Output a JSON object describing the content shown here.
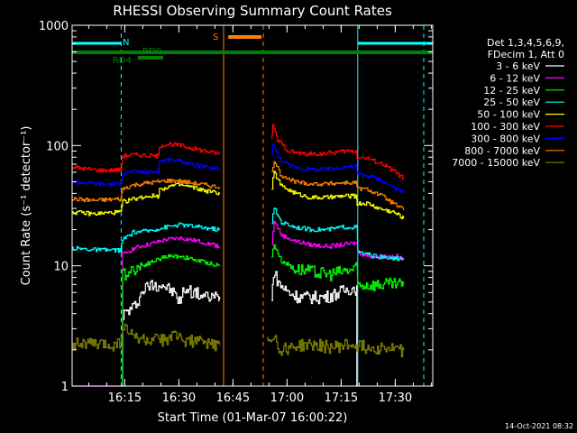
{
  "chart_data": {
    "type": "line",
    "title": "RHESSI Observing Summary Count Rates",
    "xlabel": "Start Time (01-Mar-07 16:00:22)",
    "ylabel": "Count Rate (s⁻¹ detector⁻¹)",
    "yscale": "log",
    "ylim": [
      1,
      1000
    ],
    "xlim_minutes": [
      0,
      100
    ],
    "x_unit": "minutes after 16:00:22",
    "x_ticks": [
      {
        "v": 14.6,
        "label": "16:15"
      },
      {
        "v": 29.6,
        "label": "16:30"
      },
      {
        "v": 44.6,
        "label": "16:45"
      },
      {
        "v": 59.6,
        "label": "17:00"
      },
      {
        "v": 74.6,
        "label": "17:15"
      },
      {
        "v": 89.6,
        "label": "17:30"
      }
    ],
    "y_ticks": [
      {
        "v": 1,
        "label": "1"
      },
      {
        "v": 10,
        "label": "10"
      },
      {
        "v": 100,
        "label": "100"
      },
      {
        "v": 1000,
        "label": "1000"
      }
    ],
    "legend_header": [
      "Det 1,3,4,5,6,9,",
      "FDecim 1, Att 0"
    ],
    "series": [
      {
        "name": "3 - 6 keV",
        "color": "#ffffff",
        "segments": [
          [
            [
              13.6,
              0
            ],
            [
              14.4,
              4
            ],
            [
              17.0,
              4.5
            ],
            [
              20.0,
              6.5
            ],
            [
              22.0,
              7
            ],
            [
              25.0,
              7
            ],
            [
              28.0,
              6
            ],
            [
              30.0,
              5
            ],
            [
              31.0,
              6.5
            ],
            [
              34.0,
              6
            ],
            [
              37.0,
              5.5
            ],
            [
              41.0,
              5.5
            ]
          ],
          [
            [
              55.3,
              5
            ],
            [
              55.8,
              9
            ],
            [
              57.5,
              7
            ],
            [
              60.0,
              6
            ],
            [
              63.0,
              5.5
            ],
            [
              66.0,
              5.5
            ],
            [
              70.0,
              5.5
            ],
            [
              74.0,
              6
            ],
            [
              77.0,
              6.5
            ],
            [
              78.9,
              6.5
            ],
            [
              79.0,
              0
            ]
          ]
        ]
      },
      {
        "name": "6 - 12 keV",
        "color": "#ff00ff",
        "segments": [
          [
            [
              0,
              0
            ],
            [
              13.6,
              0
            ],
            [
              14.4,
              12.5
            ],
            [
              17.0,
              14
            ],
            [
              21.0,
              15
            ],
            [
              26.0,
              16.5
            ],
            [
              30.0,
              17
            ],
            [
              35.0,
              16
            ],
            [
              41.0,
              14.5
            ]
          ],
          [
            [
              55.3,
              15
            ],
            [
              56.0,
              24
            ],
            [
              58.0,
              18
            ],
            [
              62.0,
              16
            ],
            [
              66.0,
              15
            ],
            [
              71.0,
              14.5
            ],
            [
              75.0,
              15
            ],
            [
              79.0,
              15.5
            ],
            [
              79.2,
              13
            ],
            [
              82.0,
              12
            ],
            [
              86.0,
              12
            ],
            [
              90.0,
              12
            ],
            [
              92.0,
              11.5
            ]
          ]
        ]
      },
      {
        "name": "12 - 25 keV",
        "color": "#00ff00",
        "segments": [
          [
            [
              13.6,
              0
            ],
            [
              14.4,
              8.5
            ],
            [
              17.0,
              9.5
            ],
            [
              21.0,
              10.5
            ],
            [
              26.0,
              12
            ],
            [
              30.0,
              12
            ],
            [
              35.0,
              11
            ],
            [
              41.0,
              10
            ]
          ],
          [
            [
              55.3,
              12
            ],
            [
              56.0,
              15
            ],
            [
              58.0,
              11
            ],
            [
              62.0,
              9.5
            ],
            [
              66.0,
              9
            ],
            [
              71.0,
              8.5
            ],
            [
              75.0,
              9
            ],
            [
              79.0,
              9.5
            ],
            [
              79.2,
              7
            ],
            [
              82.0,
              7
            ],
            [
              86.0,
              7
            ],
            [
              92.0,
              7
            ]
          ]
        ]
      },
      {
        "name": "25 - 50 keV",
        "color": "#00ffff",
        "segments": [
          [
            [
              0,
              14
            ],
            [
              8.0,
              13.5
            ],
            [
              13.5,
              13.5
            ],
            [
              14.0,
              16.5
            ],
            [
              17.0,
              19
            ],
            [
              21.0,
              19.5
            ],
            [
              26.0,
              21
            ],
            [
              30.0,
              22
            ],
            [
              35.0,
              21
            ],
            [
              41.0,
              20
            ]
          ],
          [
            [
              55.3,
              23
            ],
            [
              56.0,
              30
            ],
            [
              58.0,
              23
            ],
            [
              62.0,
              21
            ],
            [
              66.0,
              20
            ],
            [
              71.0,
              20
            ],
            [
              75.0,
              21
            ],
            [
              79.0,
              21
            ],
            [
              79.2,
              13
            ],
            [
              84.0,
              12
            ],
            [
              88.0,
              11.5
            ],
            [
              92.0,
              11.5
            ]
          ]
        ]
      },
      {
        "name": "50 - 100 keV",
        "color": "#ffff00",
        "segments": [
          [
            [
              0,
              28
            ],
            [
              6.0,
              27
            ],
            [
              13.5,
              28
            ],
            [
              14.0,
              34
            ],
            [
              17.0,
              36
            ],
            [
              21.0,
              38
            ],
            [
              24.0,
              38
            ],
            [
              24.2,
              43
            ],
            [
              27.0,
              46
            ],
            [
              30.0,
              47
            ],
            [
              33.0,
              45
            ],
            [
              37.0,
              42
            ],
            [
              41.0,
              40
            ]
          ],
          [
            [
              55.3,
              45
            ],
            [
              56.0,
              60
            ],
            [
              58.0,
              46
            ],
            [
              62.0,
              40
            ],
            [
              66.0,
              37
            ],
            [
              71.0,
              37
            ],
            [
              75.0,
              38
            ],
            [
              78.9,
              38
            ],
            [
              79.0,
              33
            ],
            [
              82.0,
              33
            ],
            [
              85.0,
              30
            ],
            [
              89.0,
              28
            ],
            [
              92.0,
              25
            ]
          ]
        ]
      },
      {
        "name": "100 - 300 keV",
        "color": "#ff0000",
        "segments": [
          [
            [
              0,
              66
            ],
            [
              8.0,
              62
            ],
            [
              13.5,
              63
            ],
            [
              14.0,
              82
            ],
            [
              17.0,
              84
            ],
            [
              21.0,
              82
            ],
            [
              24.0,
              82
            ],
            [
              24.2,
              100
            ],
            [
              27.0,
              103
            ],
            [
              30.0,
              100
            ],
            [
              33.0,
              95
            ],
            [
              37.0,
              90
            ],
            [
              41.0,
              85
            ]
          ],
          [
            [
              55.3,
              110
            ],
            [
              55.6,
              145
            ],
            [
              57.0,
              110
            ],
            [
              60.0,
              90
            ],
            [
              64.0,
              85
            ],
            [
              68.0,
              85
            ],
            [
              72.0,
              87
            ],
            [
              76.0,
              90
            ],
            [
              78.9,
              90
            ],
            [
              79.0,
              80
            ],
            [
              82.0,
              78
            ],
            [
              86.0,
              70
            ],
            [
              89.0,
              62
            ],
            [
              92.0,
              53
            ]
          ]
        ]
      },
      {
        "name": "300 - 800 keV",
        "color": "#0000ff",
        "segments": [
          [
            [
              0,
              50
            ],
            [
              8.0,
              48
            ],
            [
              13.5,
              48
            ],
            [
              14.0,
              59
            ],
            [
              17.0,
              61
            ],
            [
              21.0,
              60
            ],
            [
              24.0,
              61
            ],
            [
              24.2,
              75
            ],
            [
              27.0,
              76
            ],
            [
              30.0,
              74
            ],
            [
              33.0,
              70
            ],
            [
              37.0,
              66
            ],
            [
              41.0,
              63
            ]
          ],
          [
            [
              55.3,
              80
            ],
            [
              55.6,
              105
            ],
            [
              57.0,
              80
            ],
            [
              60.0,
              68
            ],
            [
              64.0,
              64
            ],
            [
              68.0,
              63
            ],
            [
              72.0,
              64
            ],
            [
              76.0,
              67
            ],
            [
              78.9,
              67
            ],
            [
              79.0,
              58
            ],
            [
              82.0,
              56
            ],
            [
              86.0,
              51
            ],
            [
              89.0,
              45
            ],
            [
              92.0,
              40
            ]
          ]
        ]
      },
      {
        "name": "800 - 7000 keV",
        "color": "#ff8000",
        "segments": [
          [
            [
              0,
              36
            ],
            [
              6.0,
              35
            ],
            [
              13.5,
              36
            ],
            [
              14.0,
              44
            ],
            [
              17.0,
              47
            ],
            [
              21.0,
              49
            ],
            [
              24.0,
              50
            ],
            [
              26.0,
              51
            ],
            [
              29.0,
              51
            ],
            [
              33.0,
              49
            ],
            [
              37.0,
              47
            ],
            [
              41.0,
              45
            ]
          ],
          [
            [
              55.3,
              60
            ],
            [
              56.0,
              75
            ],
            [
              58.0,
              55
            ],
            [
              62.0,
              50
            ],
            [
              66.0,
              48
            ],
            [
              70.0,
              48
            ],
            [
              75.0,
              49
            ],
            [
              78.9,
              49
            ],
            [
              79.0,
              44
            ],
            [
              82.0,
              43
            ],
            [
              86.0,
              38
            ],
            [
              89.0,
              33
            ],
            [
              92.0,
              29
            ]
          ]
        ]
      },
      {
        "name": "7000 - 15000 keV",
        "color": "#808000",
        "segments": [
          [
            [
              0,
              2.3
            ],
            [
              8.0,
              2.2
            ],
            [
              11.0,
              2.2
            ],
            [
              13.5,
              2.3
            ],
            [
              14.0,
              3.2
            ],
            [
              16.0,
              2.7
            ],
            [
              20.0,
              2.4
            ],
            [
              24.0,
              2.4
            ],
            [
              28.0,
              2.6
            ],
            [
              32.0,
              2.4
            ],
            [
              36.0,
              2.3
            ],
            [
              41.0,
              2.2
            ]
          ],
          [
            [
              54.0,
              2.5
            ],
            [
              55.0,
              2.5
            ],
            [
              56.0,
              2.8
            ],
            [
              57.0,
              2.0
            ],
            [
              60.0,
              2.1
            ],
            [
              64.0,
              2.2
            ],
            [
              68.0,
              2.2
            ],
            [
              72.0,
              2.1
            ],
            [
              76.0,
              2.2
            ],
            [
              79.0,
              2.2
            ],
            [
              82.0,
              2.1
            ],
            [
              86.0,
              2.1
            ],
            [
              90.0,
              2.0
            ],
            [
              92.0,
              2.0
            ]
          ]
        ]
      }
    ],
    "state_bars": [
      {
        "label": "N",
        "color": "#00ffff",
        "ranges": [
          [
            0,
            13.6
          ],
          [
            79.2,
            100
          ]
        ],
        "label_at": 14.0
      },
      {
        "label": "RD0",
        "color": "#008000",
        "ranges": [
          [
            0,
            100
          ]
        ],
        "label_at": 19.5
      },
      {
        "label": "RD4",
        "color": "#008000",
        "ranges": [
          [
            18.2,
            25.2
          ]
        ],
        "label_at": 11.2
      },
      {
        "label": "S",
        "color": "#ff8000",
        "ranges": [
          [
            43.3,
            52.5
          ]
        ],
        "label_at": 39.0
      }
    ],
    "vertical_markers": [
      {
        "x": 0,
        "color": "#00ffff",
        "style": "solid"
      },
      {
        "x": 13.6,
        "color": "#00ffff",
        "style": "dashed"
      },
      {
        "x": 42.0,
        "color": "#ff8000",
        "style": "solid"
      },
      {
        "x": 53.0,
        "color": "#ff8000",
        "style": "dashed"
      },
      {
        "x": 79.2,
        "color": "#00ffff",
        "style": "solid"
      },
      {
        "x": 97.5,
        "color": "#00ffff",
        "style": "dashed"
      }
    ]
  },
  "footer": {
    "timestamp": "14-Oct-2021 08:32"
  }
}
